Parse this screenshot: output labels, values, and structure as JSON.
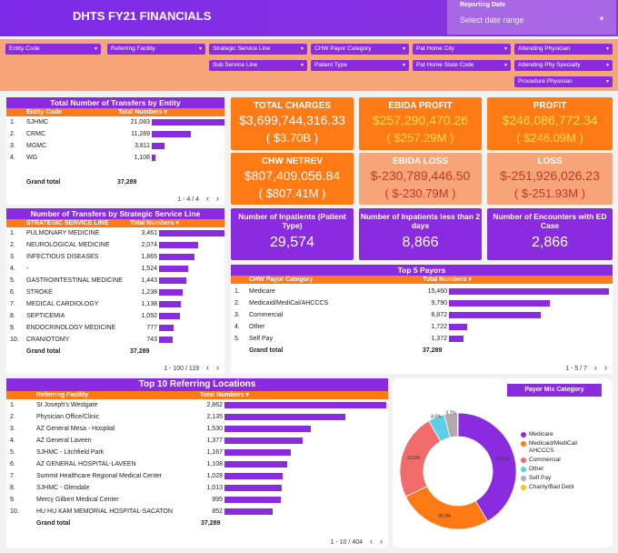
{
  "header": {
    "title": "DHTS FY21 FINANCIALS",
    "date_label": "Reporting Date",
    "date_placeholder": "Select date range"
  },
  "filters": [
    "Entity Code",
    "Referring Facility",
    "Strategic Service Line",
    "CHW Payor Category",
    "Pat Home City",
    "Attending Physician",
    "Sub Service Line",
    "Patient Type",
    "Pat Home State Code",
    "Attending Phy Specialty",
    "Procedure Physician"
  ],
  "entity": {
    "title": "Total Number of Transfers by Entity",
    "col1": "Entity Code",
    "col2": "Total Numbers ▾",
    "rows": [
      {
        "n": "1.",
        "name": "SJHMC",
        "val": "21,083",
        "v": 21083
      },
      {
        "n": "2.",
        "name": "CRMC",
        "val": "11,289",
        "v": 11289
      },
      {
        "n": "3.",
        "name": "MGMC",
        "val": "3,811",
        "v": 3811
      },
      {
        "n": "4.",
        "name": "WG",
        "val": "1,106",
        "v": 1106
      }
    ],
    "grand_label": "Grand total",
    "grand_val": "37,289",
    "pager": "1 - 4 / 4"
  },
  "ssl": {
    "title": "Number of Transfers by Strategic Service Line",
    "col1": "STRATEGIC SERVICE LINE",
    "col2": "Total Numbers ▾",
    "rows": [
      {
        "n": "1.",
        "name": "PULMONARY MEDICINE",
        "val": "3,461",
        "v": 3461
      },
      {
        "n": "2.",
        "name": "NEUROLOGICAL MEDICINE",
        "val": "2,074",
        "v": 2074
      },
      {
        "n": "3.",
        "name": "INFECTIOUS DISEASES",
        "val": "1,865",
        "v": 1865
      },
      {
        "n": "4.",
        "name": "-",
        "val": "1,524",
        "v": 1524
      },
      {
        "n": "5.",
        "name": "GASTROINTESTINAL MEDICINE",
        "val": "1,443",
        "v": 1443
      },
      {
        "n": "6.",
        "name": "STROKE",
        "val": "1,238",
        "v": 1238
      },
      {
        "n": "7.",
        "name": "MEDICAL CARDIOLOGY",
        "val": "1,138",
        "v": 1138
      },
      {
        "n": "8.",
        "name": "SEPTICEMIA",
        "val": "1,092",
        "v": 1092
      },
      {
        "n": "9.",
        "name": "ENDOCRINOLOGY MEDICINE",
        "val": "777",
        "v": 777
      },
      {
        "n": "10.",
        "name": "CRANIOTOMY",
        "val": "743",
        "v": 743
      }
    ],
    "grand_label": "Grand total",
    "grand_val": "37,289",
    "pager": "1 - 100 / 119"
  },
  "kpis": {
    "total_charges": {
      "t": "TOTAL CHARGES",
      "v": "$3,699,744,316.33",
      "s": "(   $3.70B   )"
    },
    "ebida_profit": {
      "t": "EBIDA PROFIT",
      "v": "$257,290,470.26",
      "s": "( $257.29M )"
    },
    "profit": {
      "t": "PROFIT",
      "v": "$246,086,772.34",
      "s": "( $246.09M )"
    },
    "chw_netrev": {
      "t": "CHW NETREV",
      "v": "$807,409,056.84",
      "s": "( $807.41M )"
    },
    "ebida_loss": {
      "t": "EBIDA LOSS",
      "v": "$-230,789,446.50",
      "s": "( $-230.79M )"
    },
    "loss": {
      "t": "LOSS",
      "v": "$-251,926,026.23",
      "s": "( $-251.93M )"
    },
    "inpatients": {
      "t": "Number of Inpatients (Patient Type)",
      "v": "29,574"
    },
    "inpatients_2d": {
      "t": "Number of Inpatients less than 2 days",
      "v": "8,866"
    },
    "encounters_ed": {
      "t": "Number of Encounters with ED Case",
      "v": "2,866"
    }
  },
  "payors": {
    "title": "Top 5 Payors",
    "col1": "CHW Payor Category",
    "col2": "Total Numbers ▾",
    "rows": [
      {
        "n": "1.",
        "name": "Medicare",
        "val": "15,460",
        "v": 15460
      },
      {
        "n": "2.",
        "name": "Medicaid/MediCal/AHCCCS",
        "val": "9,790",
        "v": 9790
      },
      {
        "n": "3.",
        "name": "Commercial",
        "val": "8,872",
        "v": 8872
      },
      {
        "n": "4.",
        "name": "Other",
        "val": "1,722",
        "v": 1722
      },
      {
        "n": "5.",
        "name": "Self Pay",
        "val": "1,372",
        "v": 1372
      }
    ],
    "grand_label": "Grand total",
    "grand_val": "37,289",
    "pager": "1 - 5 / 7"
  },
  "referring": {
    "title": "Top 10 Referring Locations",
    "col1": "Referring Facility",
    "col2": "Total Numbers ▾",
    "rows": [
      {
        "n": "1.",
        "name": "St Joseph's Westgate",
        "val": "2,862",
        "v": 2862
      },
      {
        "n": "2.",
        "name": "Physician Office/Clinic",
        "val": "2,135",
        "v": 2135
      },
      {
        "n": "3.",
        "name": "AZ General Mesa - Hospital",
        "val": "1,530",
        "v": 1530
      },
      {
        "n": "4.",
        "name": "AZ General Laveen",
        "val": "1,377",
        "v": 1377
      },
      {
        "n": "5.",
        "name": "SJHMC - Litchfield Park",
        "val": "1,167",
        "v": 1167
      },
      {
        "n": "6.",
        "name": "AZ GENERAL HOSPITAL-LAVEEN",
        "val": "1,108",
        "v": 1108
      },
      {
        "n": "7.",
        "name": "Summit Healthcare Regional Medical Center",
        "val": "1,028",
        "v": 1028
      },
      {
        "n": "8.",
        "name": "SJHMC - Glendale",
        "val": "1,013",
        "v": 1013
      },
      {
        "n": "9.",
        "name": "Mercy Gilbert Medical Center",
        "val": "995",
        "v": 995
      },
      {
        "n": "10.",
        "name": "HU HU KAM MEMORIAL HOSPITAL-SACATON",
        "val": "852",
        "v": 852
      }
    ],
    "grand_label": "Grand total",
    "grand_val": "37,289",
    "pager": "1 - 10 / 404"
  },
  "chart_data": {
    "type": "pie",
    "title": "Payor Mix Category",
    "categories": [
      "Medicare",
      "Medicaid/MediCal/AHCCCS",
      "Commercial",
      "Other",
      "Self Pay",
      "Charity/Bad Debt"
    ],
    "values": [
      41.5,
      26.3,
      23.8,
      4.6,
      3.7,
      0.1
    ],
    "labels": [
      "41.5%",
      "26.3%",
      "23.8%",
      "4.6%",
      "3.7%",
      ""
    ],
    "colors": [
      "#8a2be2",
      "#ff7a14",
      "#f26b6b",
      "#5ccfe6",
      "#b8a9b0",
      "#ffc21a"
    ],
    "donut": true,
    "legend": "right"
  }
}
